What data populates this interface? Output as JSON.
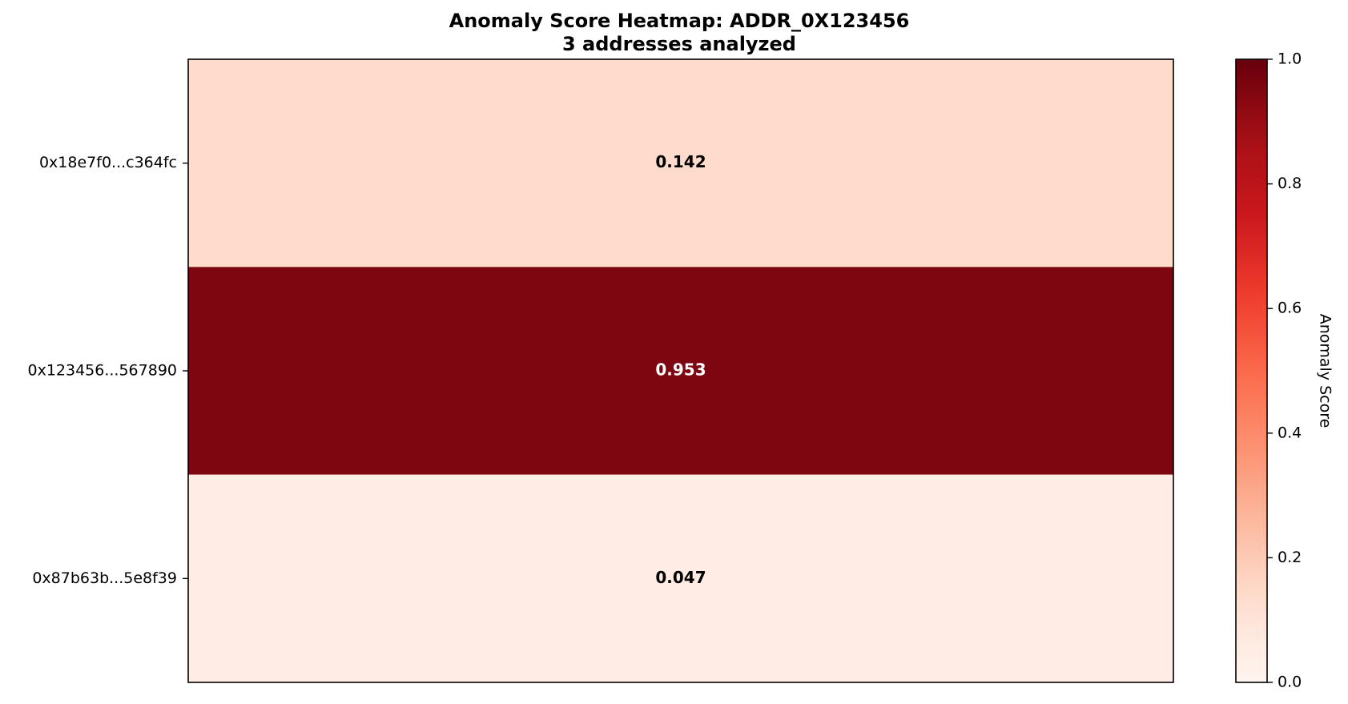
{
  "chart_data": {
    "type": "heatmap",
    "title": "Anomaly Score Heatmap: ADDR_0X123456",
    "subtitle": "3 addresses analyzed",
    "rows": [
      "0x18e7f0...c364fc",
      "0x123456...567890",
      "0x87b63b...5e8f39"
    ],
    "values": [
      0.142,
      0.953,
      0.047
    ],
    "value_labels": [
      "0.142",
      "0.953",
      "0.047"
    ],
    "colormap": "Reds",
    "vmin": 0.0,
    "vmax": 1.0,
    "colorbar": {
      "label": "Anomaly Score",
      "ticks": [
        0.0,
        0.2,
        0.4,
        0.6,
        0.8,
        1.0
      ],
      "tick_labels": [
        "0.0",
        "0.2",
        "0.4",
        "0.6",
        "0.8",
        "1.0"
      ]
    },
    "grid": false
  }
}
